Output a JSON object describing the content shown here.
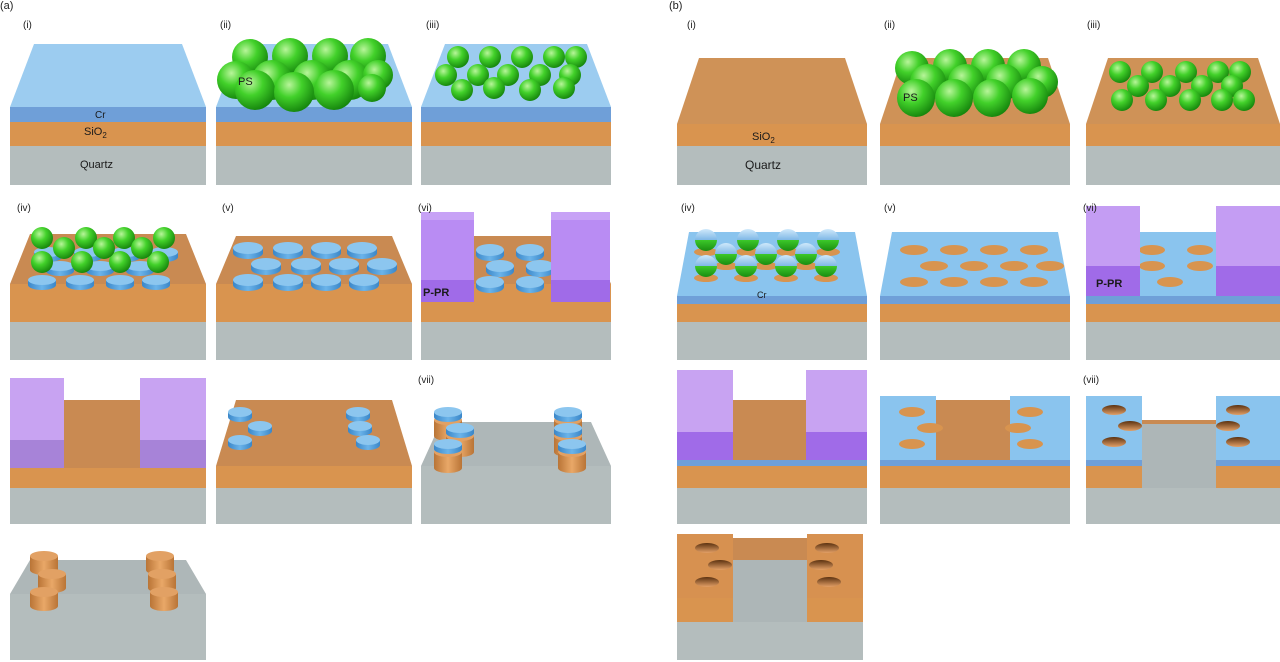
{
  "colors": {
    "background": "#ffffff",
    "quartz": "#b4bdbd",
    "sio2": "#d9944f",
    "sio2_top": "#c98a52",
    "cr": "#6f9fd8",
    "cr_top": "#9cccf0",
    "ps_sphere": "#3fcf2f",
    "photoresist": "#b78ef5",
    "photoresist_dark": "#a06be8",
    "disk": "#5aa8e0"
  },
  "panel_a": {
    "label": "(a)",
    "steps": {
      "i": "(i)",
      "ii": "(ii)",
      "iii": "(iii)",
      "iv": "(iv)",
      "v": "(v)",
      "vi": "(vi)",
      "vii": "(vii)"
    },
    "layers": {
      "cr": "Cr",
      "sio2": "SiO",
      "sio2_sub": "2",
      "quartz": "Quartz"
    },
    "ps": "PS",
    "ppr": "P-PR"
  },
  "panel_b": {
    "label": "(b)",
    "steps": {
      "i": "(i)",
      "ii": "(ii)",
      "iii": "(iii)",
      "iv": "(iv)",
      "v": "(v)",
      "vi": "(vi)",
      "vii": "(vii)"
    },
    "layers": {
      "cr": "Cr",
      "sio2": "SiO",
      "sio2_sub": "2",
      "quartz": "Quartz"
    },
    "ps": "PS",
    "ppr": "P-PR"
  }
}
